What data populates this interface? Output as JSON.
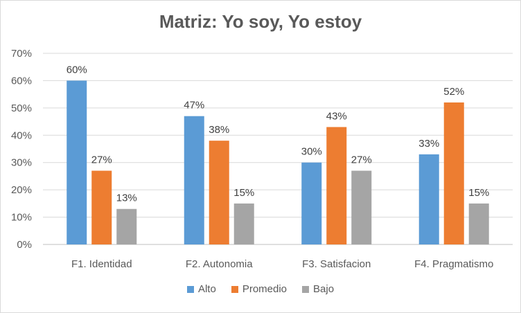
{
  "chart_data": {
    "type": "bar",
    "title": "Matriz: Yo soy, Yo estoy",
    "categories": [
      "F1. Identidad",
      "F2. Autonomia",
      "F3. Satisfacion",
      "F4. Pragmatismo"
    ],
    "series": [
      {
        "name": "Alto",
        "color": "#5b9bd5",
        "values": [
          60,
          47,
          30,
          33
        ]
      },
      {
        "name": "Promedio",
        "color": "#ed7d31",
        "values": [
          27,
          38,
          43,
          52
        ]
      },
      {
        "name": "Bajo",
        "color": "#a5a5a5",
        "values": [
          13,
          15,
          27,
          15
        ]
      }
    ],
    "ylim": [
      0,
      70
    ],
    "yticks": [
      0,
      10,
      20,
      30,
      40,
      50,
      60,
      70
    ],
    "yticks_labels": [
      "0%",
      "10%",
      "20%",
      "30%",
      "40%",
      "50%",
      "60%",
      "70%"
    ],
    "data_labels": [
      [
        "60%",
        "47%",
        "30%",
        "33%"
      ],
      [
        "27%",
        "38%",
        "43%",
        "52%"
      ],
      [
        "13%",
        "15%",
        "27%",
        "15%"
      ]
    ],
    "grid": true,
    "legend_position": "bottom"
  }
}
